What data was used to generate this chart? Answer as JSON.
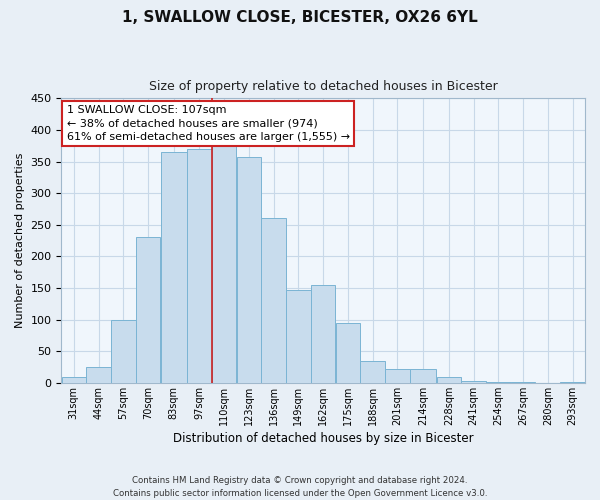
{
  "title": "1, SWALLOW CLOSE, BICESTER, OX26 6YL",
  "subtitle": "Size of property relative to detached houses in Bicester",
  "xlabel": "Distribution of detached houses by size in Bicester",
  "ylabel": "Number of detached properties",
  "categories": [
    "31sqm",
    "44sqm",
    "57sqm",
    "70sqm",
    "83sqm",
    "97sqm",
    "110sqm",
    "123sqm",
    "136sqm",
    "149sqm",
    "162sqm",
    "175sqm",
    "188sqm",
    "201sqm",
    "214sqm",
    "228sqm",
    "241sqm",
    "254sqm",
    "267sqm",
    "280sqm",
    "293sqm"
  ],
  "values": [
    10,
    25,
    100,
    230,
    365,
    370,
    375,
    357,
    260,
    147,
    155,
    95,
    34,
    22,
    22,
    10,
    3,
    1,
    1,
    0,
    2
  ],
  "bar_color": "#c8dced",
  "bar_edge_color": "#7ab4d4",
  "bin_edges": [
    31,
    44,
    57,
    70,
    83,
    97,
    110,
    123,
    136,
    149,
    162,
    175,
    188,
    201,
    214,
    228,
    241,
    254,
    267,
    280,
    293,
    306
  ],
  "vline_x_bin_index": 6,
  "vline_color": "#cc2222",
  "annotation_line1": "1 SWALLOW CLOSE: 107sqm",
  "annotation_line2": "← 38% of detached houses are smaller (974)",
  "annotation_line3": "61% of semi-detached houses are larger (1,555) →",
  "annotation_box_fc": "#ffffff",
  "annotation_box_ec": "#cc2222",
  "ylim": [
    0,
    450
  ],
  "yticks": [
    0,
    50,
    100,
    150,
    200,
    250,
    300,
    350,
    400,
    450
  ],
  "footer_line1": "Contains HM Land Registry data © Crown copyright and database right 2024.",
  "footer_line2": "Contains public sector information licensed under the Open Government Licence v3.0.",
  "fig_bg_color": "#e8eff6",
  "plot_bg_color": "#f0f6fc",
  "grid_color": "#c8d8e8",
  "spine_color": "#a0b8cc"
}
